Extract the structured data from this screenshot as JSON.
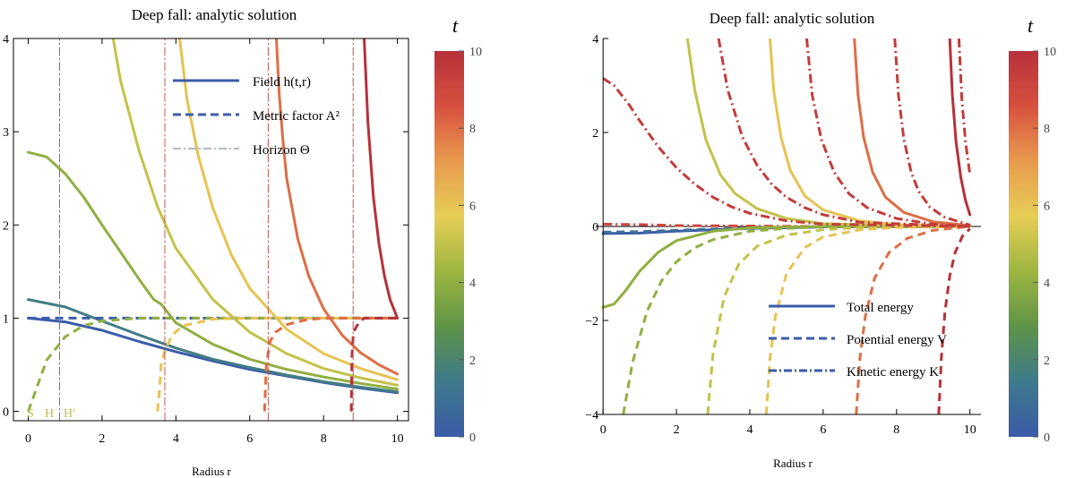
{
  "colors": {
    "scale": [
      "#3b5ca8",
      "#3e7a8c",
      "#5e9447",
      "#9eb640",
      "#e6cd55",
      "#e89a4d",
      "#d8503f",
      "#b7313a"
    ],
    "horizon": "#c0574e",
    "frame": "#000000"
  },
  "colorbar": {
    "label": "t",
    "ticks": [
      "0",
      "2",
      "4",
      "6",
      "8",
      "10"
    ],
    "range": [
      0,
      10
    ]
  },
  "chart_data": [
    {
      "type": "line",
      "title": "Deep fall: analytic solution",
      "xlabel": "Radius r",
      "ylabel": "",
      "xlim": [
        -0.4,
        10.3
      ],
      "ylim": [
        -0.1,
        4
      ],
      "xticks": [
        "0",
        "2",
        "4",
        "6",
        "8",
        "10"
      ],
      "yticks": [
        "0",
        "1",
        "2",
        "3",
        "4"
      ],
      "grid": false,
      "legend_position": "top-right",
      "legend": [
        {
          "label": "Field h(t,r)",
          "style": "solid"
        },
        {
          "label": "Metric factor A²",
          "style": "dashed"
        },
        {
          "label": "Horizon Θ",
          "style": "dashdot"
        }
      ],
      "annotations": [
        "S",
        "H",
        "H'"
      ],
      "series": [
        {
          "kind": "field",
          "t": 0,
          "x": [
            0,
            1,
            2,
            3,
            4,
            5,
            6,
            7,
            8,
            9,
            10
          ],
          "y": [
            1.0,
            0.96,
            0.87,
            0.75,
            0.64,
            0.54,
            0.45,
            0.38,
            0.31,
            0.25,
            0.2
          ]
        },
        {
          "kind": "field",
          "t": 1.6,
          "x": [
            0,
            1,
            2,
            3,
            4,
            5,
            6,
            7,
            8,
            9,
            10
          ],
          "y": [
            1.2,
            1.12,
            0.97,
            0.82,
            0.68,
            0.56,
            0.47,
            0.39,
            0.32,
            0.26,
            0.21
          ]
        },
        {
          "kind": "metric",
          "t": 0,
          "x": [
            0,
            10
          ],
          "y": [
            1.0,
            1.0
          ]
        },
        {
          "kind": "field",
          "t": 4,
          "x": [
            0,
            0.5,
            1,
            1.5,
            2,
            2.5,
            3,
            3.4,
            3.6,
            4,
            5,
            6,
            7,
            8,
            9,
            10
          ],
          "y": [
            2.78,
            2.73,
            2.55,
            2.3,
            2.0,
            1.71,
            1.42,
            1.2,
            1.15,
            0.95,
            0.72,
            0.56,
            0.45,
            0.37,
            0.3,
            0.24
          ]
        },
        {
          "kind": "metric",
          "t": 4,
          "x": [
            0,
            0.5,
            1,
            1.5,
            2,
            3,
            4,
            6,
            8,
            10
          ],
          "y": [
            0.0,
            0.55,
            0.8,
            0.92,
            0.97,
            1.0,
            1.0,
            1.0,
            1.0,
            1.0
          ]
        },
        {
          "kind": "horizon",
          "t": 4,
          "x": [
            0.85,
            0.85
          ],
          "y": [
            -0.1,
            4
          ]
        },
        {
          "kind": "field",
          "t": 5,
          "x": [
            2.3,
            2.5,
            3,
            3.5,
            4,
            5,
            6,
            7,
            8,
            9,
            10
          ],
          "y": [
            4.0,
            3.55,
            2.8,
            2.2,
            1.75,
            1.2,
            0.85,
            0.62,
            0.46,
            0.36,
            0.28
          ]
        },
        {
          "kind": "metric",
          "t": 6,
          "x": [
            3.5,
            3.55,
            3.6,
            3.7,
            3.9,
            4.2,
            5,
            6,
            8,
            10
          ],
          "y": [
            0.0,
            0.2,
            0.5,
            0.65,
            0.82,
            0.92,
            0.99,
            1.0,
            1.0,
            1.0
          ]
        },
        {
          "kind": "horizon",
          "t": 6,
          "x": [
            3.7,
            3.7
          ],
          "y": [
            -0.1,
            4
          ]
        },
        {
          "kind": "field",
          "t": 6,
          "x": [
            4.1,
            4.3,
            4.6,
            5,
            5.5,
            6,
            7,
            8,
            9,
            10
          ],
          "y": [
            4.0,
            3.35,
            2.75,
            2.18,
            1.68,
            1.32,
            0.88,
            0.62,
            0.46,
            0.34
          ]
        },
        {
          "kind": "metric",
          "t": 8,
          "x": [
            6.4,
            6.45,
            6.55,
            6.7,
            7,
            7.5,
            8,
            10
          ],
          "y": [
            0.0,
            0.5,
            0.75,
            0.85,
            0.93,
            0.98,
            1.0,
            1.0
          ]
        },
        {
          "kind": "horizon",
          "t": 8,
          "x": [
            6.5,
            6.5
          ],
          "y": [
            -0.1,
            4
          ]
        },
        {
          "kind": "field",
          "t": 8,
          "x": [
            6.72,
            6.8,
            6.9,
            7,
            7.3,
            7.6,
            8,
            8.5,
            9,
            9.5,
            10
          ],
          "y": [
            4.0,
            3.4,
            2.9,
            2.5,
            1.85,
            1.45,
            1.1,
            0.82,
            0.63,
            0.5,
            0.4
          ]
        },
        {
          "kind": "metric",
          "t": 10,
          "x": [
            8.75,
            8.77,
            8.8,
            8.85,
            8.95,
            9.1,
            10
          ],
          "y": [
            0.0,
            0.6,
            0.8,
            0.88,
            0.95,
            1.0,
            1.0
          ]
        },
        {
          "kind": "horizon",
          "t": 10,
          "x": [
            8.8,
            8.8
          ],
          "y": [
            -0.1,
            4
          ]
        },
        {
          "kind": "field",
          "t": 10,
          "x": [
            9.1,
            9.2,
            9.35,
            9.5,
            9.65,
            9.8,
            10
          ],
          "y": [
            4.0,
            3.1,
            2.3,
            1.8,
            1.45,
            1.2,
            1.0
          ]
        }
      ]
    },
    {
      "type": "line",
      "title": "Deep fall: analytic solution",
      "xlabel": "Radius r",
      "ylabel": "",
      "xlim": [
        -0.2,
        10.3
      ],
      "ylim": [
        -4,
        4
      ],
      "xticks": [
        "0",
        "2",
        "4",
        "6",
        "8",
        "10"
      ],
      "yticks": [
        "−4",
        "−2",
        "0",
        "2",
        "4"
      ],
      "grid": false,
      "legend_position": "bottom-right",
      "legend": [
        {
          "label": "Total energy",
          "style": "solid"
        },
        {
          "label": "Potential energy V",
          "style": "dashed"
        },
        {
          "label": "Kinetic energy K",
          "style": "dashdot"
        }
      ],
      "series": [
        {
          "kind": "total",
          "t": 0,
          "x": [
            0,
            1,
            2,
            4,
            6,
            10
          ],
          "y": [
            -0.15,
            -0.14,
            -0.1,
            -0.04,
            -0.01,
            0.0
          ]
        },
        {
          "kind": "potential",
          "t": 1,
          "x": [
            0,
            1,
            2,
            4,
            6,
            10
          ],
          "y": [
            -0.12,
            -0.11,
            -0.08,
            -0.03,
            -0.01,
            0.0
          ]
        },
        {
          "kind": "kinetic",
          "t": 9,
          "x": [
            0,
            1,
            2,
            4,
            6,
            10
          ],
          "y": [
            0.05,
            0.04,
            0.02,
            0.01,
            0.0,
            0.0
          ]
        },
        {
          "kind": "total",
          "t": 4,
          "x": [
            0,
            0.3,
            0.6,
            1,
            1.5,
            2,
            3,
            4,
            5,
            6,
            10
          ],
          "y": [
            -1.72,
            -1.65,
            -1.38,
            -0.95,
            -0.55,
            -0.3,
            -0.1,
            -0.03,
            -0.01,
            0.0,
            0.0
          ]
        },
        {
          "kind": "potential",
          "t": 4,
          "x": [
            0.55,
            0.8,
            1.2,
            1.6,
            2,
            2.5,
            3,
            4,
            5,
            6,
            10
          ],
          "y": [
            -4.0,
            -2.9,
            -1.8,
            -1.15,
            -0.75,
            -0.45,
            -0.28,
            -0.1,
            -0.04,
            -0.01,
            0.0
          ]
        },
        {
          "kind": "total",
          "t": 5,
          "x": [
            2.3,
            2.5,
            2.8,
            3.2,
            3.6,
            4.2,
            5,
            6,
            10
          ],
          "y": [
            4.0,
            2.9,
            1.85,
            1.1,
            0.7,
            0.38,
            0.17,
            0.06,
            0.0
          ]
        },
        {
          "kind": "potential",
          "t": 5,
          "x": [
            2.85,
            3,
            3.3,
            3.7,
            4.2,
            5,
            6,
            7,
            10
          ],
          "y": [
            -4.0,
            -2.7,
            -1.5,
            -0.8,
            -0.42,
            -0.18,
            -0.07,
            -0.02,
            0.0
          ]
        },
        {
          "kind": "potential",
          "t": 6,
          "x": [
            4.45,
            4.55,
            4.7,
            5,
            5.5,
            6,
            7,
            8,
            10
          ],
          "y": [
            -4.0,
            -2.8,
            -1.9,
            -1.0,
            -0.45,
            -0.22,
            -0.07,
            -0.02,
            0.0
          ]
        },
        {
          "kind": "total",
          "t": 6,
          "x": [
            4.55,
            4.65,
            4.85,
            5.1,
            5.5,
            6,
            7,
            8,
            10
          ],
          "y": [
            4.0,
            2.9,
            1.9,
            1.2,
            0.65,
            0.35,
            0.12,
            0.04,
            0.0
          ]
        },
        {
          "kind": "potential",
          "t": 8,
          "x": [
            6.9,
            7,
            7.15,
            7.4,
            7.8,
            8.3,
            9,
            10
          ],
          "y": [
            -4.0,
            -2.8,
            -1.9,
            -1.1,
            -0.55,
            -0.25,
            -0.08,
            0.0
          ]
        },
        {
          "kind": "total",
          "t": 8,
          "x": [
            6.85,
            6.95,
            7.1,
            7.35,
            7.7,
            8.2,
            9,
            10
          ],
          "y": [
            4.0,
            2.8,
            1.9,
            1.15,
            0.62,
            0.3,
            0.1,
            0.02
          ]
        },
        {
          "kind": "potential",
          "t": 10,
          "x": [
            9.15,
            9.22,
            9.32,
            9.45,
            9.6,
            9.8,
            10
          ],
          "y": [
            -4.0,
            -2.8,
            -1.8,
            -1.05,
            -0.55,
            -0.2,
            -0.05
          ]
        },
        {
          "kind": "total",
          "t": 10,
          "x": [
            9.45,
            9.52,
            9.62,
            9.75,
            9.88,
            10
          ],
          "y": [
            4.0,
            2.8,
            1.8,
            1.05,
            0.55,
            0.25
          ]
        },
        {
          "kind": "kinetic",
          "t": 9.5,
          "x": [
            0,
            0.3,
            0.7,
            1,
            1.5,
            2,
            2.5,
            3,
            3.5,
            4,
            5,
            6,
            10
          ],
          "y": [
            3.15,
            3.0,
            2.6,
            2.25,
            1.7,
            1.25,
            0.9,
            0.62,
            0.42,
            0.28,
            0.12,
            0.05,
            0.0
          ]
        },
        {
          "kind": "kinetic",
          "t": 9.5,
          "x": [
            3.15,
            3.4,
            3.8,
            4.2,
            4.6,
            5,
            5.5,
            6,
            7,
            10
          ],
          "y": [
            4.0,
            2.9,
            1.9,
            1.3,
            0.9,
            0.62,
            0.4,
            0.25,
            0.09,
            0.0
          ]
        },
        {
          "kind": "kinetic",
          "t": 9.5,
          "x": [
            5.55,
            5.7,
            5.95,
            6.3,
            6.7,
            7.2,
            8,
            9,
            10
          ],
          "y": [
            4.0,
            2.8,
            1.85,
            1.15,
            0.7,
            0.4,
            0.17,
            0.05,
            0.0
          ]
        },
        {
          "kind": "kinetic",
          "t": 9.5,
          "x": [
            7.95,
            8.05,
            8.2,
            8.4,
            8.6,
            8.9,
            9.3,
            10
          ],
          "y": [
            4.0,
            2.8,
            1.85,
            1.15,
            0.75,
            0.42,
            0.2,
            0.03
          ]
        },
        {
          "kind": "kinetic",
          "t": 9.5,
          "x": [
            9.7,
            9.78,
            9.88,
            10
          ],
          "y": [
            4.0,
            2.7,
            1.8,
            1.1
          ]
        }
      ]
    }
  ]
}
